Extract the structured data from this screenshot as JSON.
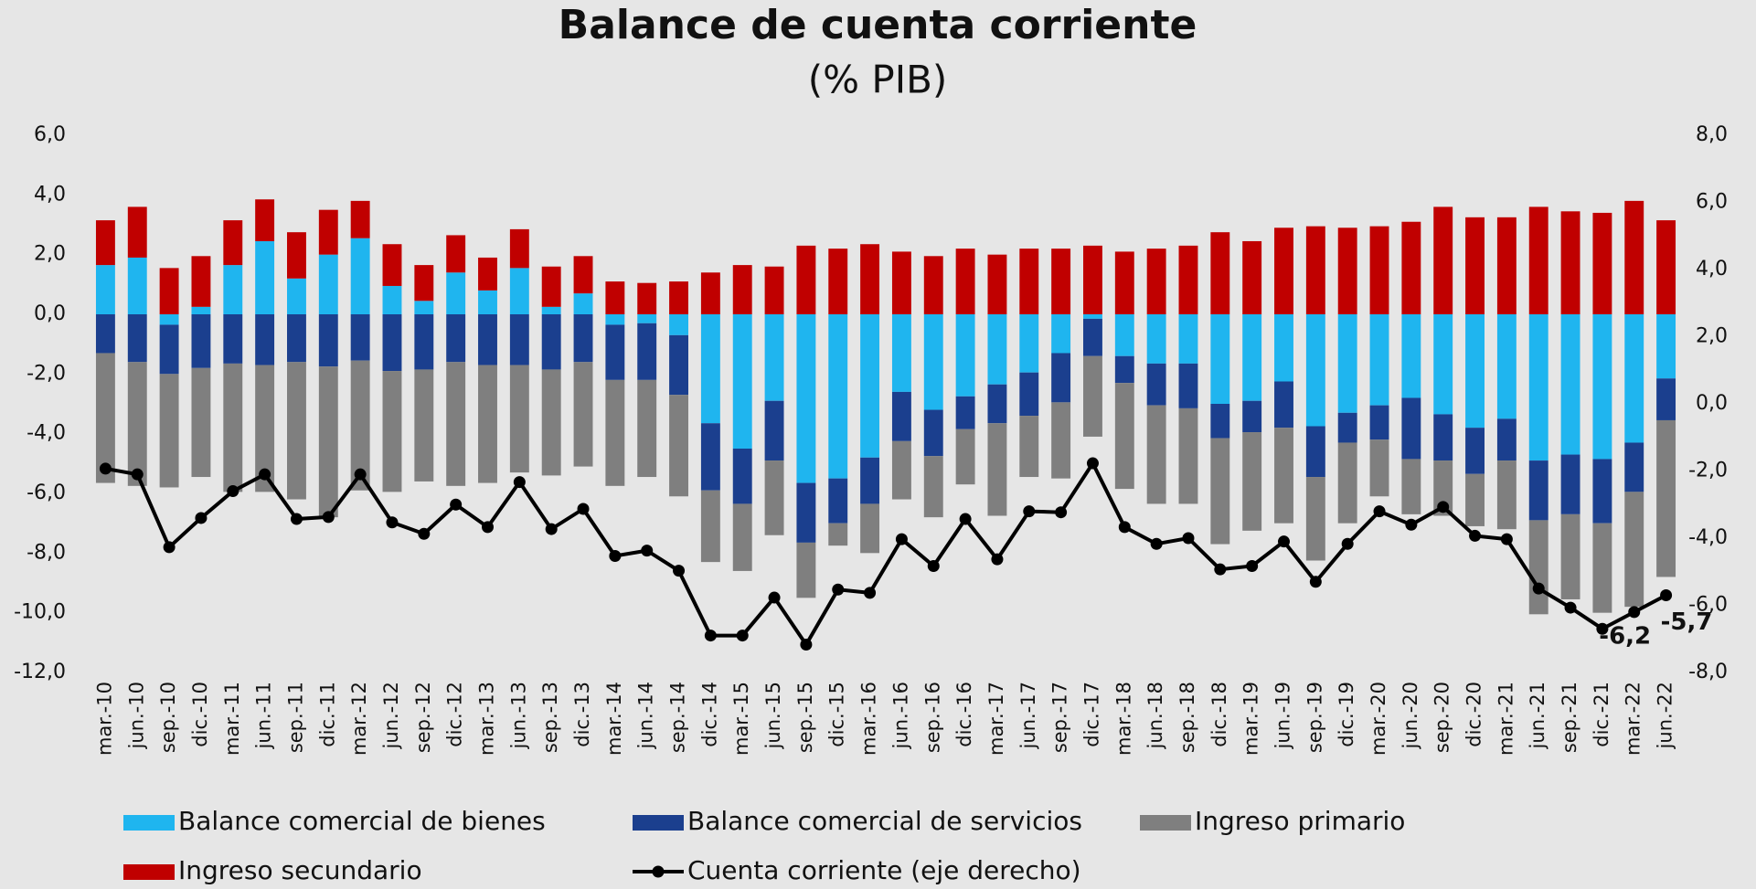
{
  "chart_data": {
    "type": "bar",
    "stacked": true,
    "title": "Balance de cuenta corriente",
    "subtitle": "(% PIB)",
    "categories": [
      "mar.-10",
      "jun.-10",
      "sep.-10",
      "dic.-10",
      "mar.-11",
      "jun.-11",
      "sep.-11",
      "dic.-11",
      "mar.-12",
      "jun.-12",
      "sep.-12",
      "dic.-12",
      "mar.-13",
      "jun.-13",
      "sep.-13",
      "dic.-13",
      "mar.-14",
      "jun.-14",
      "sep.-14",
      "dic.-14",
      "mar.-15",
      "jun.-15",
      "sep.-15",
      "dic.-15",
      "mar.-16",
      "jun.-16",
      "sep.-16",
      "dic.-16",
      "mar.-17",
      "jun.-17",
      "sep.-17",
      "dic.-17",
      "mar.-18",
      "jun.-18",
      "sep.-18",
      "dic.-18",
      "mar.-19",
      "jun.-19",
      "sep.-19",
      "dic.-19",
      "mar.-20",
      "jun.-20",
      "sep.-20",
      "dic.-20",
      "mar.-21",
      "jun.-21",
      "sep.-21",
      "dic.-21",
      "mar.-22",
      "jun.-22"
    ],
    "series": [
      {
        "name": "Balance comercial de bienes",
        "color": "#1fb5ef",
        "type": "bar",
        "values": [
          1.65,
          1.9,
          -0.35,
          0.25,
          1.65,
          2.45,
          1.2,
          2.0,
          2.55,
          0.95,
          0.45,
          1.4,
          0.8,
          1.55,
          0.25,
          0.7,
          -0.35,
          -0.3,
          -0.7,
          -3.65,
          -4.5,
          -2.9,
          -5.65,
          -5.5,
          -4.8,
          -2.6,
          -3.2,
          -2.75,
          -2.35,
          -1.95,
          -1.3,
          -0.15,
          -1.4,
          -1.65,
          -1.65,
          -3.0,
          -2.9,
          -2.25,
          -3.75,
          -3.3,
          -3.05,
          -2.8,
          -3.35,
          -3.8,
          -3.5,
          -4.9,
          -4.7,
          -4.85,
          -4.3,
          -2.15
        ]
      },
      {
        "name": "Balance comercial de servicios",
        "color": "#1b3f8e",
        "type": "bar",
        "values": [
          -1.3,
          -1.6,
          -1.65,
          -1.8,
          -1.65,
          -1.7,
          -1.6,
          -1.75,
          -1.55,
          -1.9,
          -1.85,
          -1.6,
          -1.7,
          -1.7,
          -1.85,
          -1.6,
          -1.85,
          -1.9,
          -2.0,
          -2.25,
          -1.85,
          -2.0,
          -2.0,
          -1.5,
          -1.55,
          -1.65,
          -1.55,
          -1.1,
          -1.3,
          -1.45,
          -1.65,
          -1.25,
          -0.9,
          -1.4,
          -1.5,
          -1.15,
          -1.05,
          -1.55,
          -1.7,
          -1.0,
          -1.15,
          -2.05,
          -1.55,
          -1.55,
          -1.4,
          -2.0,
          -2.0,
          -2.15,
          -1.65,
          -1.4
        ]
      },
      {
        "name": "Ingreso primario",
        "color": "#7f7f7f",
        "type": "bar",
        "values": [
          -4.35,
          -4.15,
          -3.8,
          -3.65,
          -4.3,
          -4.25,
          -4.6,
          -5.05,
          -4.35,
          -4.05,
          -3.75,
          -4.15,
          -3.95,
          -3.6,
          -3.55,
          -3.5,
          -3.55,
          -3.25,
          -3.4,
          -2.4,
          -2.25,
          -2.5,
          -1.85,
          -0.75,
          -1.65,
          -1.95,
          -2.05,
          -1.85,
          -3.1,
          -2.05,
          -2.55,
          -2.7,
          -3.55,
          -3.3,
          -3.2,
          -3.55,
          -3.3,
          -3.2,
          -2.8,
          -2.7,
          -1.9,
          -1.85,
          -1.85,
          -1.75,
          -2.3,
          -3.15,
          -2.85,
          -3.0,
          -3.85,
          -5.25
        ]
      },
      {
        "name": "Ingreso secundario",
        "color": "#c00000",
        "type": "bar",
        "values": [
          1.5,
          1.7,
          1.55,
          1.7,
          1.5,
          1.4,
          1.55,
          1.5,
          1.25,
          1.4,
          1.2,
          1.25,
          1.1,
          1.3,
          1.35,
          1.25,
          1.1,
          1.05,
          1.1,
          1.4,
          1.65,
          1.6,
          2.3,
          2.2,
          2.35,
          2.1,
          1.95,
          2.2,
          2.0,
          2.2,
          2.2,
          2.3,
          2.1,
          2.2,
          2.3,
          2.75,
          2.45,
          2.9,
          2.95,
          2.9,
          2.95,
          3.1,
          3.6,
          3.25,
          3.25,
          3.6,
          3.45,
          3.4,
          3.8,
          3.15
        ]
      },
      {
        "name": "Cuenta corriente (eje derecho)",
        "color": "#000000",
        "type": "line",
        "axis": "y2",
        "values": [
          -1.93,
          -2.1,
          -4.27,
          -3.4,
          -2.6,
          -2.1,
          -3.43,
          -3.37,
          -2.1,
          -3.53,
          -3.87,
          -3.0,
          -3.67,
          -2.33,
          -3.73,
          -3.13,
          -4.53,
          -4.37,
          -4.97,
          -6.9,
          -6.9,
          -5.77,
          -7.17,
          -5.53,
          -5.63,
          -4.03,
          -4.83,
          -3.43,
          -4.63,
          -3.2,
          -3.23,
          -1.77,
          -3.67,
          -4.17,
          -4.0,
          -4.93,
          -4.83,
          -4.1,
          -5.3,
          -4.17,
          -3.2,
          -3.6,
          -3.07,
          -3.93,
          -4.03,
          -5.5,
          -6.07,
          -6.7,
          -6.2,
          -5.7
        ],
        "value_labels": [
          null,
          null,
          null,
          null,
          null,
          null,
          null,
          null,
          null,
          null,
          null,
          null,
          null,
          null,
          null,
          null,
          null,
          null,
          null,
          null,
          null,
          null,
          null,
          null,
          null,
          null,
          null,
          null,
          null,
          null,
          null,
          null,
          null,
          null,
          null,
          null,
          null,
          null,
          null,
          null,
          null,
          null,
          null,
          null,
          null,
          null,
          null,
          null,
          "-6,2",
          "-5,7"
        ]
      }
    ],
    "ylim": [
      -12,
      6
    ],
    "yticks": [
      {
        "value": -12,
        "label": "-12,0"
      },
      {
        "value": -10,
        "label": "-10,0"
      },
      {
        "value": -8,
        "label": "-8,0"
      },
      {
        "value": -6,
        "label": "-6,0"
      },
      {
        "value": -4,
        "label": "-4,0"
      },
      {
        "value": -2,
        "label": "-2,0"
      },
      {
        "value": 0,
        "label": "0,0"
      },
      {
        "value": 2,
        "label": "2,0"
      },
      {
        "value": 4,
        "label": "4,0"
      },
      {
        "value": 6,
        "label": "6,0"
      }
    ],
    "y2lim": [
      -8,
      8
    ],
    "y2ticks": [
      {
        "value": -8,
        "label": "-8,0"
      },
      {
        "value": -6,
        "label": "-6,0"
      },
      {
        "value": -4,
        "label": "-4,0"
      },
      {
        "value": -2,
        "label": "-2,0"
      },
      {
        "value": 0,
        "label": "0,0"
      },
      {
        "value": 2,
        "label": "2,0"
      },
      {
        "value": 4,
        "label": "4,0"
      },
      {
        "value": 6,
        "label": "6,0"
      },
      {
        "value": 8,
        "label": "8,0"
      }
    ],
    "grid": false,
    "legend": "bottom"
  }
}
